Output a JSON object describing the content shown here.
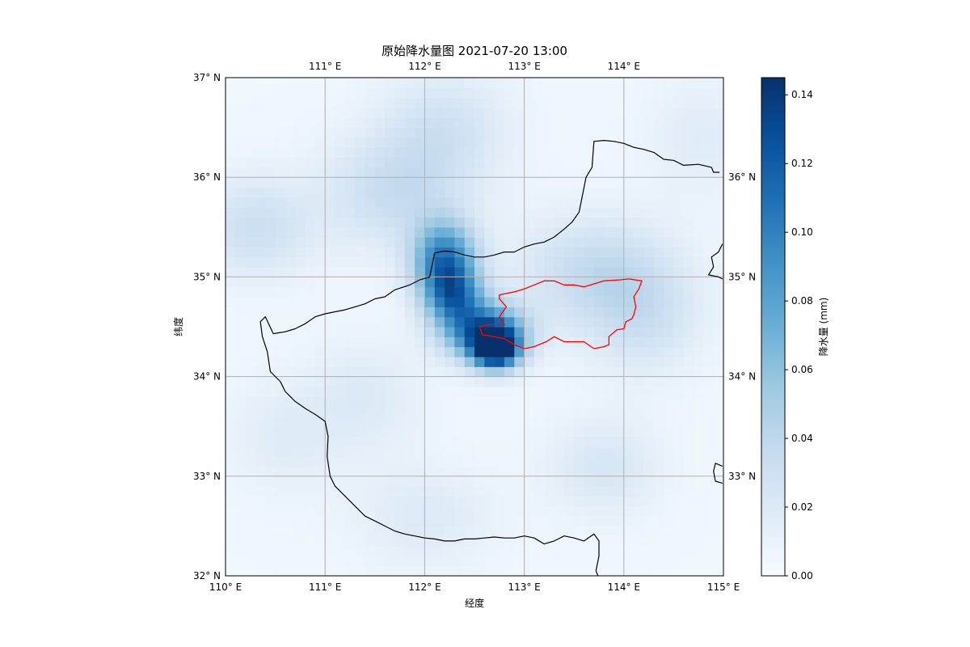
{
  "figure": {
    "title": "原始降水量图 2021-07-20 13:00",
    "xlabel": "经度",
    "ylabel": "纬度"
  },
  "map_extent": {
    "lon": [
      110,
      115
    ],
    "lat": [
      32,
      37
    ]
  },
  "ticks": {
    "bottom_outer": [
      {
        "lon": 110,
        "label": "110° E"
      },
      {
        "lon": 115,
        "label": "115° E"
      }
    ],
    "bottom_inner": [
      {
        "lon": 111,
        "label": "111° E"
      },
      {
        "lon": 112,
        "label": "112° E"
      },
      {
        "lon": 113,
        "label": "113° E"
      },
      {
        "lon": 114,
        "label": "114° E"
      }
    ],
    "top": [
      {
        "lon": 111,
        "label": "111° E"
      },
      {
        "lon": 112,
        "label": "112° E"
      },
      {
        "lon": 113,
        "label": "113° E"
      },
      {
        "lon": 114,
        "label": "114° E"
      }
    ],
    "left": [
      {
        "lat": 37,
        "label": "37° N"
      },
      {
        "lat": 36,
        "label": "36° N"
      },
      {
        "lat": 35,
        "label": "35° N"
      },
      {
        "lat": 34,
        "label": "34° N"
      },
      {
        "lat": 33,
        "label": "33° N"
      },
      {
        "lat": 32,
        "label": "32° N"
      }
    ],
    "right": [
      {
        "lat": 36,
        "label": "36° N"
      },
      {
        "lat": 35,
        "label": "35° N"
      },
      {
        "lat": 34,
        "label": "34° N"
      },
      {
        "lat": 33,
        "label": "33° N"
      }
    ]
  },
  "colorbar": {
    "label": "降水量 (mm)",
    "min": 0,
    "max": 0.145,
    "ticks": [
      {
        "value": 0.0,
        "label": "0.00"
      },
      {
        "value": 0.02,
        "label": "0.02"
      },
      {
        "value": 0.04,
        "label": "0.04"
      },
      {
        "value": 0.06,
        "label": "0.06"
      },
      {
        "value": 0.08,
        "label": "0.08"
      },
      {
        "value": 0.1,
        "label": "0.10"
      },
      {
        "value": 0.12,
        "label": "0.12"
      },
      {
        "value": 0.14,
        "label": "0.14"
      }
    ]
  },
  "colors": {
    "province_boundary": "#000000",
    "city_boundary": "#ff0000",
    "gridline": "#b0b0b0",
    "colormap": "Blues"
  },
  "rainfall_field": {
    "unit": "mm",
    "cell_deg": 0.1,
    "background": 0.005,
    "blobs": [
      {
        "lon": 112.2,
        "lat": 35.15,
        "peak": 0.1,
        "sigma_lon": 0.22,
        "sigma_lat": 0.28
      },
      {
        "lon": 112.6,
        "lat": 34.45,
        "peak": 0.11,
        "sigma_lon": 0.28,
        "sigma_lat": 0.2
      },
      {
        "lon": 112.72,
        "lat": 34.28,
        "peak": 0.135,
        "sigma_lon": 0.16,
        "sigma_lat": 0.14
      },
      {
        "lon": 112.3,
        "lat": 34.8,
        "peak": 0.07,
        "sigma_lon": 0.2,
        "sigma_lat": 0.2
      },
      {
        "lon": 111.7,
        "lat": 35.85,
        "peak": 0.028,
        "sigma_lon": 0.5,
        "sigma_lat": 0.4
      },
      {
        "lon": 112.2,
        "lat": 36.5,
        "peak": 0.022,
        "sigma_lon": 0.45,
        "sigma_lat": 0.4
      },
      {
        "lon": 110.3,
        "lat": 35.5,
        "peak": 0.026,
        "sigma_lon": 0.4,
        "sigma_lat": 0.35
      },
      {
        "lon": 113.7,
        "lat": 35.05,
        "peak": 0.03,
        "sigma_lon": 0.55,
        "sigma_lat": 0.4
      },
      {
        "lon": 114.2,
        "lat": 34.6,
        "peak": 0.022,
        "sigma_lon": 0.4,
        "sigma_lat": 0.4
      },
      {
        "lon": 113.8,
        "lat": 33.1,
        "peak": 0.018,
        "sigma_lon": 0.4,
        "sigma_lat": 0.35
      },
      {
        "lon": 111.4,
        "lat": 33.8,
        "peak": 0.014,
        "sigma_lon": 0.4,
        "sigma_lat": 0.4
      },
      {
        "lon": 112.0,
        "lat": 32.6,
        "peak": 0.014,
        "sigma_lon": 0.5,
        "sigma_lat": 0.35
      },
      {
        "lon": 110.6,
        "lat": 33.4,
        "peak": 0.012,
        "sigma_lon": 0.4,
        "sigma_lat": 0.4
      },
      {
        "lon": 114.8,
        "lat": 36.4,
        "peak": 0.012,
        "sigma_lon": 0.4,
        "sigma_lat": 0.4
      }
    ]
  },
  "province_boundary": [
    {
      "name": "henan-main",
      "closed": false,
      "points": [
        [
          114.96,
          36.05
        ],
        [
          114.9,
          36.05
        ],
        [
          114.88,
          36.1
        ],
        [
          114.75,
          36.13
        ],
        [
          114.6,
          36.12
        ],
        [
          114.5,
          36.17
        ],
        [
          114.4,
          36.18
        ],
        [
          114.3,
          36.25
        ],
        [
          114.2,
          36.28
        ],
        [
          114.1,
          36.3
        ],
        [
          114.0,
          36.34
        ],
        [
          113.9,
          36.36
        ],
        [
          113.8,
          36.37
        ],
        [
          113.7,
          36.36
        ],
        [
          113.68,
          36.1
        ],
        [
          113.62,
          36.0
        ],
        [
          113.58,
          35.8
        ],
        [
          113.55,
          35.65
        ],
        [
          113.48,
          35.55
        ],
        [
          113.4,
          35.48
        ],
        [
          113.3,
          35.4
        ],
        [
          113.2,
          35.35
        ],
        [
          113.1,
          35.33
        ],
        [
          113.0,
          35.3
        ],
        [
          112.9,
          35.25
        ],
        [
          112.8,
          35.25
        ],
        [
          112.7,
          35.22
        ],
        [
          112.6,
          35.2
        ],
        [
          112.5,
          35.2
        ],
        [
          112.4,
          35.22
        ],
        [
          112.3,
          35.25
        ],
        [
          112.2,
          35.26
        ],
        [
          112.1,
          35.24
        ],
        [
          112.05,
          35.0
        ],
        [
          111.95,
          34.97
        ],
        [
          111.85,
          34.92
        ],
        [
          111.7,
          34.87
        ],
        [
          111.6,
          34.8
        ],
        [
          111.5,
          34.78
        ],
        [
          111.4,
          34.73
        ],
        [
          111.3,
          34.7
        ],
        [
          111.2,
          34.67
        ],
        [
          111.1,
          34.65
        ],
        [
          111.0,
          34.63
        ],
        [
          110.9,
          34.6
        ],
        [
          110.8,
          34.53
        ],
        [
          110.7,
          34.48
        ],
        [
          110.6,
          34.45
        ],
        [
          110.48,
          34.43
        ],
        [
          110.4,
          34.6
        ],
        [
          110.35,
          34.55
        ],
        [
          110.37,
          34.4
        ],
        [
          110.42,
          34.25
        ],
        [
          110.45,
          34.05
        ],
        [
          110.55,
          33.95
        ],
        [
          110.6,
          33.85
        ],
        [
          110.7,
          33.75
        ],
        [
          110.8,
          33.68
        ],
        [
          110.9,
          33.62
        ],
        [
          111.0,
          33.55
        ],
        [
          111.03,
          33.4
        ],
        [
          111.02,
          33.2
        ],
        [
          111.05,
          33.0
        ],
        [
          111.1,
          32.9
        ],
        [
          111.2,
          32.8
        ],
        [
          111.3,
          32.7
        ],
        [
          111.4,
          32.6
        ],
        [
          111.5,
          32.55
        ],
        [
          111.6,
          32.5
        ],
        [
          111.7,
          32.45
        ],
        [
          111.8,
          32.42
        ],
        [
          111.9,
          32.4
        ],
        [
          112.0,
          32.38
        ],
        [
          112.1,
          32.37
        ],
        [
          112.2,
          32.35
        ],
        [
          112.3,
          32.35
        ],
        [
          112.4,
          32.37
        ],
        [
          112.5,
          32.37
        ],
        [
          112.6,
          32.38
        ],
        [
          112.7,
          32.39
        ],
        [
          112.8,
          32.38
        ],
        [
          112.9,
          32.38
        ],
        [
          113.0,
          32.4
        ],
        [
          113.1,
          32.38
        ],
        [
          113.2,
          32.32
        ],
        [
          113.3,
          32.35
        ],
        [
          113.4,
          32.4
        ],
        [
          113.5,
          32.38
        ],
        [
          113.6,
          32.35
        ],
        [
          113.7,
          32.42
        ],
        [
          113.75,
          32.35
        ],
        [
          113.75,
          32.2
        ],
        [
          113.72,
          32.05
        ],
        [
          113.74,
          32.0
        ]
      ]
    },
    {
      "name": "east-edge-upper",
      "closed": false,
      "points": [
        [
          114.99,
          35.33
        ],
        [
          114.95,
          35.25
        ],
        [
          114.88,
          35.2
        ],
        [
          114.9,
          35.1
        ],
        [
          114.85,
          35.02
        ],
        [
          114.95,
          35.0
        ],
        [
          114.99,
          34.98
        ]
      ]
    },
    {
      "name": "east-edge-lower",
      "closed": false,
      "points": [
        [
          114.99,
          33.1
        ],
        [
          114.92,
          33.13
        ],
        [
          114.9,
          33.05
        ],
        [
          114.92,
          32.95
        ],
        [
          114.99,
          32.93
        ]
      ]
    }
  ],
  "city_boundary": {
    "name": "zhengzhou",
    "closed": true,
    "points": [
      [
        112.75,
        34.82
      ],
      [
        112.9,
        34.85
      ],
      [
        113.0,
        34.88
      ],
      [
        113.1,
        34.92
      ],
      [
        113.2,
        34.96
      ],
      [
        113.3,
        34.96
      ],
      [
        113.4,
        34.92
      ],
      [
        113.5,
        34.92
      ],
      [
        113.6,
        34.9
      ],
      [
        113.7,
        34.93
      ],
      [
        113.8,
        34.96
      ],
      [
        113.95,
        34.97
      ],
      [
        114.05,
        34.98
      ],
      [
        114.18,
        34.96
      ],
      [
        114.15,
        34.88
      ],
      [
        114.1,
        34.8
      ],
      [
        114.12,
        34.7
      ],
      [
        114.1,
        34.62
      ],
      [
        114.08,
        34.58
      ],
      [
        114.02,
        34.55
      ],
      [
        114.0,
        34.48
      ],
      [
        113.93,
        34.47
      ],
      [
        113.85,
        34.4
      ],
      [
        113.85,
        34.32
      ],
      [
        113.8,
        34.3
      ],
      [
        113.7,
        34.28
      ],
      [
        113.6,
        34.35
      ],
      [
        113.5,
        34.35
      ],
      [
        113.4,
        34.35
      ],
      [
        113.3,
        34.4
      ],
      [
        113.22,
        34.35
      ],
      [
        113.1,
        34.3
      ],
      [
        113.0,
        34.28
      ],
      [
        112.9,
        34.32
      ],
      [
        112.8,
        34.38
      ],
      [
        112.7,
        34.4
      ],
      [
        112.58,
        34.42
      ],
      [
        112.55,
        34.5
      ],
      [
        112.65,
        34.52
      ],
      [
        112.8,
        34.52
      ],
      [
        112.75,
        34.6
      ],
      [
        112.82,
        34.7
      ],
      [
        112.75,
        34.78
      ]
    ]
  }
}
